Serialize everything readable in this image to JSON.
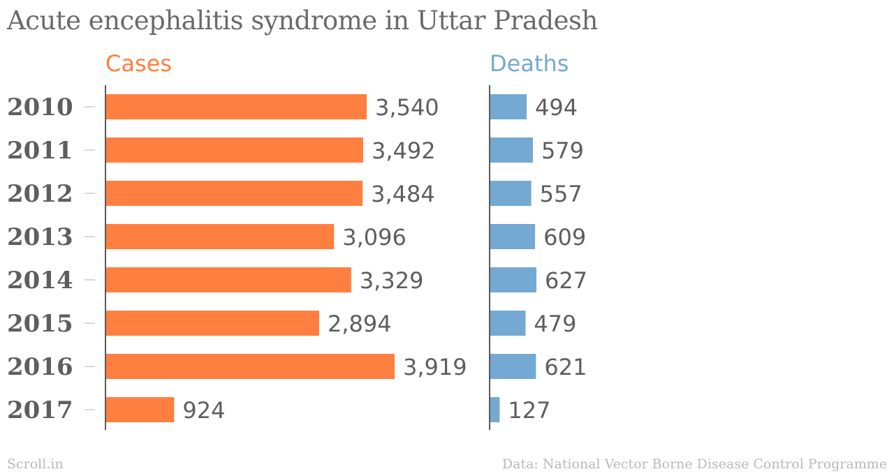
{
  "title": "Acute encephalitis syndrome in Uttar Pradesh",
  "footer": {
    "source_left": "Scroll.in",
    "source_right": "Data: National Vector Borne Disease Control Programme"
  },
  "colors": {
    "cases": "#ff7f41",
    "deaths": "#73a9d2"
  },
  "chart_data": {
    "type": "bar",
    "orientation": "horizontal",
    "categories": [
      "2010",
      "2011",
      "2012",
      "2013",
      "2014",
      "2015",
      "2016",
      "2017"
    ],
    "series": [
      {
        "name": "Cases",
        "values": [
          3540,
          3492,
          3484,
          3096,
          3329,
          2894,
          3919,
          924
        ],
        "labels": [
          "3,540",
          "3,492",
          "3,484",
          "3,096",
          "3,329",
          "2,894",
          "3,919",
          "924"
        ]
      },
      {
        "name": "Deaths",
        "values": [
          494,
          579,
          557,
          609,
          627,
          479,
          621,
          127
        ],
        "labels": [
          "494",
          "579",
          "557",
          "609",
          "627",
          "479",
          "621",
          "127"
        ]
      }
    ]
  }
}
